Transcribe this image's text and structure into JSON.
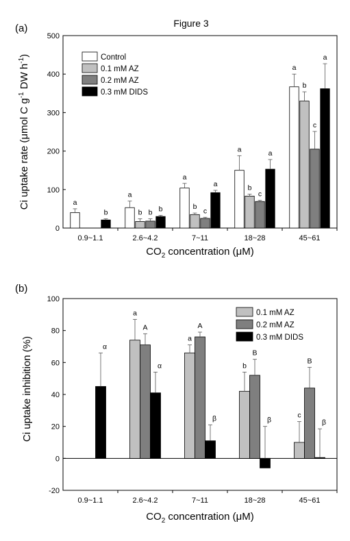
{
  "figure_title": "Figure 3",
  "chart_data": [
    {
      "type": "bar",
      "panel": "(a)",
      "xlabel_parts": [
        "CO",
        "2",
        " concentration (",
        "μ",
        "M)"
      ],
      "ylabel": "Ci uptake rate (μmol C g-1 DW h-1)",
      "ylabel_parts": [
        "Ci uptake rate (",
        "μ",
        "mol C g",
        "-1",
        " DW h",
        "-1",
        ")"
      ],
      "ylim": [
        0,
        500
      ],
      "yticks": [
        "0",
        "100",
        "200",
        "300",
        "400",
        "500"
      ],
      "categories": [
        "0.9~1.1",
        "2.6~4.2",
        "7~11",
        "18~28",
        "45~61"
      ],
      "legend_position": "top-left",
      "series": [
        {
          "name": "Control",
          "color": "#ffffff",
          "values": [
            40,
            53,
            104,
            150,
            367
          ],
          "errors": [
            10,
            17,
            12,
            38,
            33
          ],
          "labels": [
            "a",
            "a",
            "a",
            "a",
            "a"
          ]
        },
        {
          "name": "0.1 mM AZ",
          "color": "#c0c0c0",
          "values": [
            null,
            17,
            35,
            83,
            330
          ],
          "errors": [
            null,
            7,
            4,
            5,
            24
          ],
          "labels": [
            "",
            "b",
            "b",
            "b",
            "b"
          ]
        },
        {
          "name": "0.2 mM AZ",
          "color": "#7f7f7f",
          "values": [
            null,
            18,
            25,
            69,
            205
          ],
          "errors": [
            null,
            6,
            3,
            3,
            46
          ],
          "labels": [
            "",
            "b",
            "c",
            "c",
            "c"
          ]
        },
        {
          "name": "0.3 mM DIDS",
          "color": "#000000",
          "values": [
            21,
            30,
            92,
            153,
            362
          ],
          "errors": [
            3,
            3,
            6,
            25,
            65
          ],
          "labels": [
            "b",
            "b",
            "a",
            "a",
            "a"
          ]
        }
      ]
    },
    {
      "type": "bar",
      "panel": "(b)",
      "xlabel_parts": [
        "CO",
        "2",
        " concentration (",
        "μ",
        "M)"
      ],
      "ylabel": "Ci uptake inhibition (%)",
      "ylim": [
        -20,
        100
      ],
      "yticks": [
        "-20",
        "0",
        "20",
        "40",
        "60",
        "80",
        "100"
      ],
      "categories": [
        "0.9~1.1",
        "2.6~4.2",
        "7~11",
        "18~28",
        "45~61"
      ],
      "legend_position": "top-right",
      "series": [
        {
          "name": "0.1 mM AZ",
          "color": "#c0c0c0",
          "values": [
            null,
            74,
            66,
            42,
            10
          ],
          "errors": [
            null,
            13,
            5,
            12,
            13
          ],
          "labels": [
            "",
            "a",
            "a",
            "b",
            "c"
          ]
        },
        {
          "name": "0.2 mM AZ",
          "color": "#7f7f7f",
          "values": [
            null,
            71,
            76,
            52,
            44
          ],
          "errors": [
            null,
            7,
            3,
            10,
            13
          ],
          "labels": [
            "",
            "A",
            "A",
            "B",
            "B"
          ]
        },
        {
          "name": "0.3 mM DIDS",
          "color": "#000000",
          "values": [
            45,
            41,
            11,
            -6,
            0.5
          ],
          "errors": [
            21,
            13,
            10,
            26,
            18
          ],
          "labels": [
            "α",
            "α",
            "β",
            "β",
            "β"
          ]
        }
      ]
    }
  ]
}
